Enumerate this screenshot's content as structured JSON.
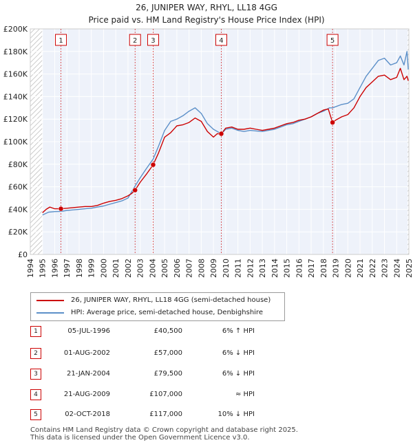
{
  "chart_data": {
    "type": "line",
    "title": "26, JUNIPER WAY, RHYL, LL18 4GG",
    "subtitle": "Price paid vs. HM Land Registry's House Price Index (HPI)",
    "xlim": [
      1994.0,
      2025.0
    ],
    "ylim": [
      0,
      200000
    ],
    "x_ticks": [
      1994,
      1995,
      1996,
      1997,
      1998,
      1999,
      2000,
      2001,
      2002,
      2003,
      2004,
      2005,
      2006,
      2007,
      2008,
      2009,
      2010,
      2011,
      2012,
      2013,
      2014,
      2015,
      2016,
      2017,
      2018,
      2019,
      2020,
      2021,
      2022,
      2023,
      2024,
      2025
    ],
    "y_ticks": [
      {
        "value": 0,
        "label": "£0"
      },
      {
        "value": 20000,
        "label": "£20K"
      },
      {
        "value": 40000,
        "label": "£40K"
      },
      {
        "value": 60000,
        "label": "£60K"
      },
      {
        "value": 80000,
        "label": "£80K"
      },
      {
        "value": 100000,
        "label": "£100K"
      },
      {
        "value": 120000,
        "label": "£120K"
      },
      {
        "value": 140000,
        "label": "£140K"
      },
      {
        "value": 160000,
        "label": "£160K"
      },
      {
        "value": 180000,
        "label": "£180K"
      },
      {
        "value": 200000,
        "label": "£200K"
      }
    ],
    "hatched_regions": [
      [
        1994.0,
        1995.0
      ],
      [
        2024.9,
        2025.0
      ]
    ],
    "series": [
      {
        "name": "26, JUNIPER WAY, RHYL, LL18 4GG (semi-detached house)",
        "color": "#cc0000",
        "x": [
          1995.0,
          1995.3,
          1995.6,
          1996.0,
          1996.3,
          1996.51,
          1997.0,
          1997.5,
          1998.0,
          1998.5,
          1999.0,
          1999.5,
          2000.0,
          2000.5,
          2001.0,
          2001.5,
          2002.0,
          2002.3,
          2002.58,
          2003.0,
          2003.5,
          2004.06,
          2004.5,
          2005.0,
          2005.5,
          2006.0,
          2006.5,
          2007.0,
          2007.5,
          2008.0,
          2008.5,
          2009.0,
          2009.3,
          2009.64,
          2010.0,
          2010.5,
          2011.0,
          2011.5,
          2012.0,
          2012.5,
          2013.0,
          2013.5,
          2014.0,
          2014.5,
          2015.0,
          2015.5,
          2016.0,
          2016.5,
          2017.0,
          2017.5,
          2018.0,
          2018.4,
          2018.75,
          2019.0,
          2019.5,
          2020.0,
          2020.5,
          2021.0,
          2021.5,
          2022.0,
          2022.5,
          2023.0,
          2023.5,
          2024.0,
          2024.3,
          2024.6,
          2024.85,
          2024.95
        ],
        "values": [
          37000,
          40000,
          42000,
          40500,
          40500,
          40500,
          41000,
          41500,
          42000,
          42500,
          42500,
          43500,
          45500,
          47000,
          48000,
          49500,
          52000,
          54000,
          57000,
          64000,
          71000,
          79500,
          90000,
          104000,
          108000,
          114000,
          115000,
          117000,
          121000,
          118000,
          109000,
          104000,
          107000,
          107000,
          112000,
          113000,
          111000,
          111000,
          112000,
          111000,
          110000,
          111000,
          112000,
          114000,
          116000,
          117000,
          119000,
          120000,
          122000,
          125000,
          128000,
          129000,
          117000,
          119000,
          122000,
          124000,
          130000,
          140000,
          148000,
          153000,
          158000,
          159000,
          155000,
          157000,
          165000,
          155000,
          158000,
          154000
        ]
      },
      {
        "name": "HPI: Average price, semi-detached house, Denbighshire",
        "color": "#5b8fc8",
        "x": [
          1995.0,
          1995.5,
          1996.0,
          1996.51,
          1997.0,
          1997.5,
          1998.0,
          1998.5,
          1999.0,
          1999.5,
          2000.0,
          2000.5,
          2001.0,
          2001.5,
          2002.0,
          2002.58,
          2003.0,
          2003.5,
          2004.06,
          2004.5,
          2005.0,
          2005.5,
          2006.0,
          2006.5,
          2007.0,
          2007.5,
          2008.0,
          2008.5,
          2009.0,
          2009.64,
          2010.0,
          2010.5,
          2011.0,
          2011.5,
          2012.0,
          2012.5,
          2013.0,
          2013.5,
          2014.0,
          2014.5,
          2015.0,
          2015.5,
          2016.0,
          2016.5,
          2017.0,
          2017.5,
          2018.0,
          2018.5,
          2018.75,
          2019.0,
          2019.5,
          2020.0,
          2020.5,
          2021.0,
          2021.5,
          2022.0,
          2022.5,
          2023.0,
          2023.5,
          2024.0,
          2024.3,
          2024.6,
          2024.85,
          2024.95
        ],
        "values": [
          35000,
          37500,
          38000,
          38200,
          39000,
          39500,
          40000,
          40500,
          41000,
          42000,
          43000,
          44500,
          46000,
          47500,
          50000,
          60600,
          68000,
          76000,
          84600,
          96000,
          110000,
          118000,
          120000,
          123000,
          127000,
          130000,
          125000,
          116000,
          111000,
          107000,
          111000,
          112000,
          110000,
          109000,
          110000,
          109500,
          109000,
          110000,
          111000,
          113000,
          115000,
          116000,
          118000,
          120000,
          122000,
          125000,
          127000,
          130000,
          130000,
          131000,
          133000,
          134000,
          138000,
          148000,
          158000,
          165000,
          172000,
          174000,
          168000,
          170000,
          176000,
          168000,
          180000,
          164000
        ]
      }
    ],
    "sales": [
      {
        "num": "1",
        "x": 1996.51,
        "price": 40500
      },
      {
        "num": "2",
        "x": 2002.58,
        "price": 57000
      },
      {
        "num": "3",
        "x": 2004.06,
        "price": 79500
      },
      {
        "num": "4",
        "x": 2009.64,
        "price": 107000
      },
      {
        "num": "5",
        "x": 2018.75,
        "price": 117000
      }
    ]
  },
  "legend": {
    "property_label": "26, JUNIPER WAY, RHYL, LL18 4GG (semi-detached house)",
    "hpi_label": "HPI: Average price, semi-detached house, Denbighshire"
  },
  "sales_table": [
    {
      "num": "1",
      "date": "05-JUL-1996",
      "price": "£40,500",
      "hpi": "6% ↑ HPI"
    },
    {
      "num": "2",
      "date": "01-AUG-2002",
      "price": "£57,000",
      "hpi": "6% ↓ HPI"
    },
    {
      "num": "3",
      "date": "21-JAN-2004",
      "price": "£79,500",
      "hpi": "6% ↓ HPI"
    },
    {
      "num": "4",
      "date": "21-AUG-2009",
      "price": "£107,000",
      "hpi": "≈ HPI"
    },
    {
      "num": "5",
      "date": "02-OCT-2018",
      "price": "£117,000",
      "hpi": "10% ↓ HPI"
    }
  ],
  "footer": {
    "line1": "Contains HM Land Registry data © Crown copyright and database right 2025.",
    "line2": "This data is licensed under the Open Government Licence v3.0."
  },
  "colors": {
    "property": "#cc0000",
    "hpi": "#5b8fc8",
    "grid": "#dddddd",
    "plot_bg": "#eef2fa"
  }
}
